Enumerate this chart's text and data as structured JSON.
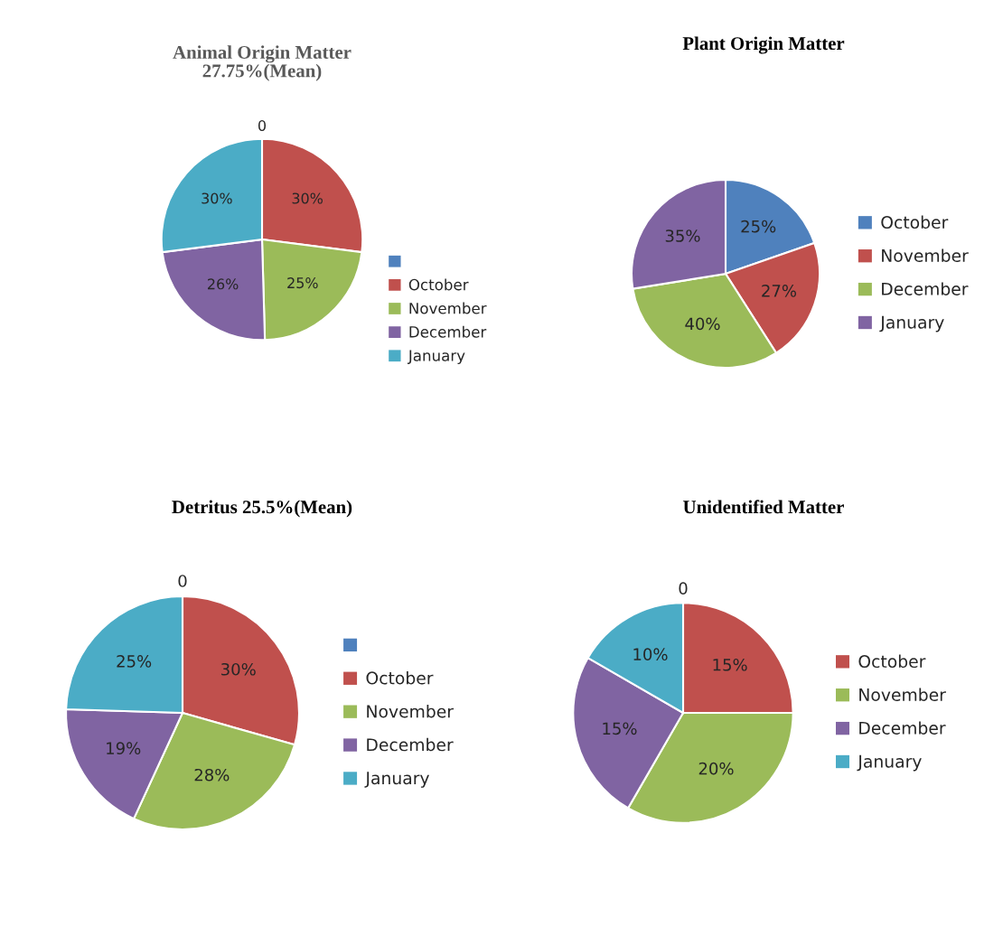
{
  "chart_data": [
    {
      "type": "pie",
      "title": "Animal Origin Matter\n27.75%(Mean)",
      "categories": [
        null,
        "October",
        "November",
        "December",
        "January"
      ],
      "values": [
        0,
        30,
        25,
        26,
        30
      ],
      "value_labels": [
        "0",
        "30%",
        "25%",
        "26%",
        "30%"
      ],
      "colors": [
        "#4f81bd",
        "#c0504d",
        "#9bbb59",
        "#8064a2",
        "#4bacc6"
      ],
      "legend": "bottom right"
    },
    {
      "type": "pie",
      "title": "Plant Origin Matter",
      "categories": [
        "October",
        "November",
        "December",
        "January"
      ],
      "values": [
        25,
        27,
        40,
        35
      ],
      "value_labels": [
        "25%",
        "27%",
        "40%",
        "35%"
      ],
      "colors": [
        "#4f81bd",
        "#c0504d",
        "#9bbb59",
        "#8064a2"
      ],
      "legend": "right"
    },
    {
      "type": "pie",
      "title": "Detritus 25.5%(Mean)",
      "categories": [
        null,
        "October",
        "November",
        "December",
        "January"
      ],
      "values": [
        0,
        30,
        28,
        19,
        25
      ],
      "value_labels": [
        "0",
        "30%",
        "28%",
        "19%",
        "25%"
      ],
      "colors": [
        "#4f81bd",
        "#c0504d",
        "#9bbb59",
        "#8064a2",
        "#4bacc6"
      ],
      "legend": "right"
    },
    {
      "type": "pie",
      "title": "Unidentified Matter",
      "categories": [
        null,
        "October",
        "November",
        "December",
        "January"
      ],
      "values": [
        0,
        15,
        20,
        15,
        10
      ],
      "value_labels": [
        "0",
        "15%",
        "20%",
        "15%",
        "10%"
      ],
      "colors": [
        null,
        "#c0504d",
        "#9bbb59",
        "#8064a2",
        "#4bacc6"
      ],
      "legend": "right"
    }
  ]
}
